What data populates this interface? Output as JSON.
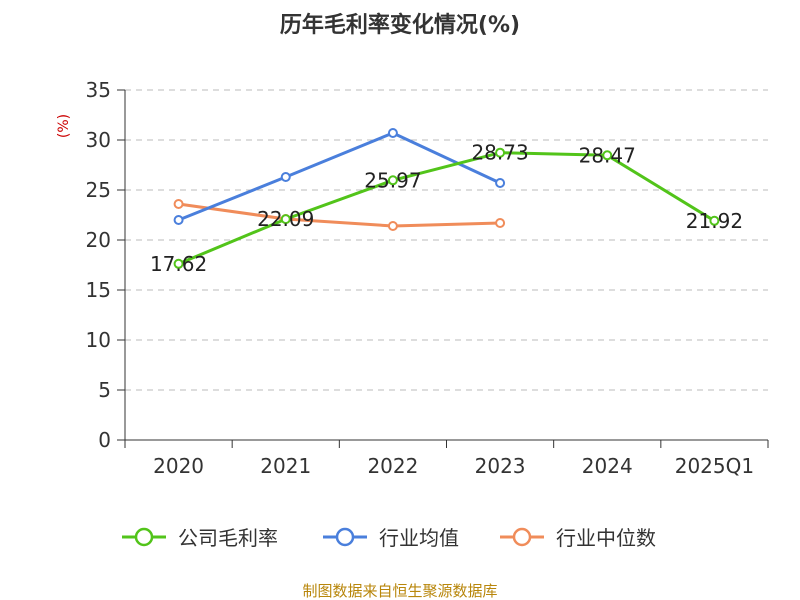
{
  "chart_data": {
    "type": "line",
    "title": "历年毛利率变化情况(%)",
    "ylabel": "(%)",
    "categories": [
      "2020",
      "2021",
      "2022",
      "2023",
      "2024",
      "2025Q1"
    ],
    "ylim": [
      0,
      35
    ],
    "yticks": [
      0,
      5,
      10,
      15,
      20,
      25,
      30,
      35
    ],
    "grid": true,
    "legend_position": "bottom",
    "series": [
      {
        "name": "公司毛利率",
        "color": "#52c41a",
        "values": [
          17.62,
          22.09,
          25.97,
          28.73,
          28.47,
          21.92
        ],
        "labels": [
          "17.62",
          "22.09",
          "25.97",
          "28.73",
          "28.47",
          "21.92"
        ]
      },
      {
        "name": "行业均值",
        "color": "#4a7fdc",
        "values": [
          22.0,
          26.3,
          30.7,
          25.7,
          null,
          null
        ]
      },
      {
        "name": "行业中位数",
        "color": "#f08c5a",
        "values": [
          23.6,
          22.1,
          21.4,
          21.7,
          null,
          null
        ]
      }
    ]
  },
  "source": "制图数据来自恒生聚源数据库"
}
